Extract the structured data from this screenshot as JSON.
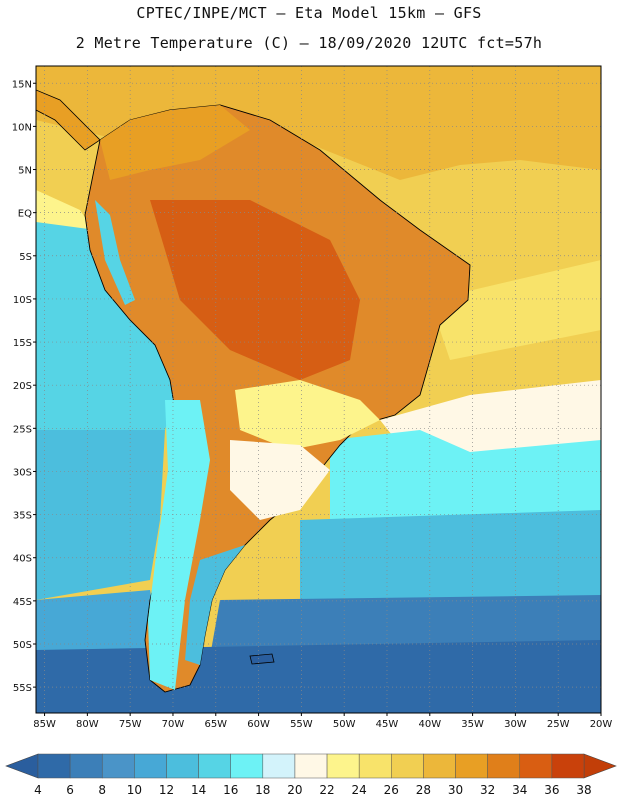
{
  "header": {
    "line1": "CPTEC/INPE/MCT –  Eta Model 15km – GFS",
    "line2": "2 Metre Temperature (C) – 18/09/2020 12UTC fct=57h"
  },
  "map": {
    "lat_labels": [
      "15N",
      "10N",
      "5N",
      "EQ",
      "5S",
      "10S",
      "15S",
      "20S",
      "25S",
      "30S",
      "35S",
      "40S",
      "45S",
      "50S",
      "55S"
    ],
    "lon_labels": [
      "85W",
      "80W",
      "75W",
      "70W",
      "65W",
      "60W",
      "55W",
      "50W",
      "45W",
      "40W",
      "35W",
      "30W",
      "25W",
      "20W"
    ],
    "lat_range": [
      17,
      -58
    ],
    "lon_range": [
      -86,
      -20
    ]
  },
  "colorbar": {
    "labels": [
      "4",
      "6",
      "8",
      "10",
      "12",
      "14",
      "16",
      "18",
      "20",
      "22",
      "24",
      "26",
      "28",
      "30",
      "32",
      "34",
      "36",
      "38"
    ],
    "colors": [
      "#2f6aa8",
      "#3c7fb8",
      "#4a94c8",
      "#47a8d6",
      "#4cbedd",
      "#56d4e5",
      "#6df2f5",
      "#d3f3fb",
      "#fff8e6",
      "#fdf48c",
      "#f8e36a",
      "#f1cf52",
      "#ecb73a",
      "#e89f24",
      "#e07f1a",
      "#d95e12",
      "#c9410b"
    ],
    "low_color": "#2a5e9e",
    "high_color": "#c23e08"
  }
}
